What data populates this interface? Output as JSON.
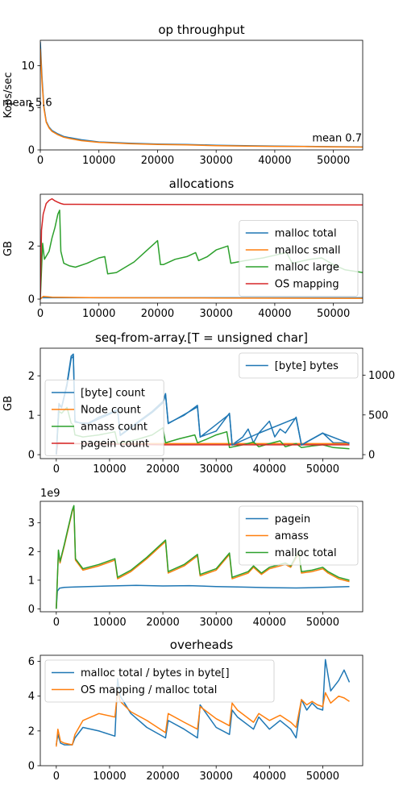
{
  "colors": {
    "C0": "#1f77b4",
    "C1": "#ff7f0e",
    "C2": "#2ca02c",
    "C3": "#d62728"
  },
  "chart_data": [
    {
      "type": "line",
      "title": "op throughput",
      "xlabel": "",
      "ylabel": "Kops/sec",
      "xlim": [
        0,
        55000
      ],
      "ylim": [
        0,
        13
      ],
      "xticks": [
        0,
        10000,
        20000,
        30000,
        40000,
        50000
      ],
      "yticks": [
        0,
        5,
        10
      ],
      "annotations": [
        "mean 5.6",
        "mean 0.7"
      ],
      "series": [
        {
          "color": "C0",
          "x": [
            0,
            300,
            600,
            1000,
            1500,
            2000,
            3000,
            4000,
            5000,
            7000,
            10000,
            15000,
            20000,
            25000,
            30000,
            35000,
            40000,
            45000,
            50000,
            55000
          ],
          "y": [
            12.8,
            8.5,
            5.2,
            3.4,
            2.7,
            2.3,
            1.9,
            1.6,
            1.45,
            1.2,
            0.95,
            0.8,
            0.7,
            0.65,
            0.55,
            0.5,
            0.45,
            0.42,
            0.38,
            0.35
          ]
        },
        {
          "color": "C1",
          "x": [
            0,
            300,
            600,
            1000,
            1500,
            2000,
            3000,
            4000,
            5000,
            7000,
            10000,
            15000,
            20000,
            25000,
            30000,
            35000,
            40000,
            45000,
            50000,
            55000
          ],
          "y": [
            12.0,
            8.0,
            5.0,
            3.3,
            2.6,
            2.2,
            1.8,
            1.5,
            1.35,
            1.1,
            0.9,
            0.75,
            0.65,
            0.6,
            0.5,
            0.45,
            0.42,
            0.4,
            0.36,
            0.33
          ]
        }
      ]
    },
    {
      "type": "line",
      "title": "allocations",
      "xlabel": "",
      "ylabel": "GB",
      "xlim": [
        0,
        55000
      ],
      "ylim": [
        -0.15,
        3.95
      ],
      "xticks": [
        0,
        10000,
        20000,
        30000,
        40000,
        50000
      ],
      "yticks": [
        0,
        2
      ],
      "legend": "center-right",
      "series": [
        {
          "name": "malloc total",
          "color": "C0",
          "x": [
            0,
            55000
          ],
          "y": [
            0.05,
            0.05
          ]
        },
        {
          "name": "malloc small",
          "color": "C1",
          "x": [
            0,
            500,
            2000,
            10000,
            30000,
            55000
          ],
          "y": [
            0.0,
            0.1,
            0.07,
            0.05,
            0.04,
            0.03
          ]
        },
        {
          "name": "malloc large",
          "color": "C2",
          "x": [
            0,
            400,
            700,
            1500,
            2000,
            2500,
            3000,
            3300,
            3500,
            4000,
            5000,
            6000,
            8000,
            10000,
            11000,
            11500,
            13000,
            16000,
            18000,
            20000,
            20500,
            21000,
            23000,
            25000,
            26500,
            27000,
            28500,
            30000,
            32000,
            32500,
            35000,
            38000,
            40000,
            42000,
            43000,
            45000,
            46000,
            48000,
            50000,
            52000,
            55000
          ],
          "y": [
            0.0,
            2.1,
            1.5,
            1.8,
            2.3,
            2.7,
            3.2,
            3.35,
            1.8,
            1.35,
            1.25,
            1.2,
            1.35,
            1.55,
            1.6,
            0.95,
            1.0,
            1.4,
            1.8,
            2.2,
            1.3,
            1.3,
            1.5,
            1.6,
            1.75,
            1.45,
            1.6,
            1.85,
            2.0,
            1.35,
            1.45,
            1.55,
            1.65,
            1.75,
            1.35,
            1.45,
            1.5,
            1.55,
            1.3,
            1.1,
            1.0
          ]
        },
        {
          "name": "OS mapping",
          "color": "C3",
          "x": [
            0,
            200,
            500,
            1000,
            1500,
            2000,
            2500,
            3000,
            3500,
            4000,
            6000,
            55000
          ],
          "y": [
            0.0,
            2.6,
            3.2,
            3.6,
            3.72,
            3.78,
            3.7,
            3.65,
            3.6,
            3.57,
            3.57,
            3.55
          ]
        }
      ]
    },
    {
      "type": "line",
      "title": "seq-from-array.[T = unsigned char]",
      "xlabel": "",
      "ylabel": "GB",
      "xlim": [
        -3000,
        57500
      ],
      "ylim": [
        -0.1,
        2.7
      ],
      "y2lim": [
        -50,
        1340
      ],
      "xticks": [
        0,
        10000,
        20000,
        30000,
        40000,
        50000
      ],
      "yticks": [
        0,
        1,
        2
      ],
      "y2ticks": [
        0,
        500,
        1000
      ],
      "legend": "center-left",
      "legend2": "top-right",
      "series": [
        {
          "name": "[byte] count",
          "color": "C0",
          "x": [
            0,
            500,
            1000,
            2000,
            2800,
            3200,
            3500,
            4500,
            6000,
            8000,
            10000,
            11500,
            12000,
            15000,
            18000,
            20000,
            20500,
            21000,
            24000,
            26500,
            27000,
            30000,
            32500,
            33000,
            35000,
            36000,
            37000,
            38000,
            39000,
            40000,
            41000,
            42000,
            43000,
            44000,
            45000,
            46000,
            48000,
            50000,
            52000,
            55000
          ],
          "y": [
            0.0,
            1.3,
            1.2,
            1.8,
            2.5,
            2.55,
            0.85,
            0.8,
            0.8,
            0.95,
            1.05,
            1.15,
            0.5,
            0.8,
            1.1,
            1.35,
            1.55,
            0.8,
            1.0,
            1.25,
            0.45,
            0.6,
            1.05,
            0.25,
            0.45,
            0.65,
            0.3,
            0.55,
            0.7,
            0.85,
            0.45,
            0.65,
            0.55,
            0.75,
            0.95,
            0.25,
            0.4,
            0.55,
            0.3,
            0.3
          ]
        },
        {
          "name": "Node count",
          "color": "C1",
          "x": [
            0,
            55000
          ],
          "y": [
            0.28,
            0.28
          ]
        },
        {
          "name": "amass count",
          "color": "C2",
          "x": [
            0,
            500,
            1000,
            2000,
            2800,
            3200,
            3500,
            5000,
            8000,
            11000,
            11500,
            15000,
            18000,
            20000,
            20500,
            23000,
            26000,
            26500,
            28000,
            30000,
            32000,
            32500,
            35000,
            37000,
            38000,
            40000,
            42000,
            43000,
            45000,
            46000,
            48000,
            50000,
            52000,
            55000
          ],
          "y": [
            0.0,
            1.1,
            1.05,
            1.2,
            0.8,
            0.75,
            0.5,
            0.45,
            0.5,
            0.58,
            0.28,
            0.38,
            0.5,
            0.68,
            0.3,
            0.4,
            0.5,
            0.3,
            0.38,
            0.5,
            0.58,
            0.18,
            0.25,
            0.32,
            0.2,
            0.28,
            0.35,
            0.2,
            0.28,
            0.18,
            0.22,
            0.25,
            0.18,
            0.15
          ]
        },
        {
          "name": "pagein count",
          "color": "C3",
          "x": [
            0,
            300,
            3000,
            20000,
            55000
          ],
          "y": [
            0.0,
            0.3,
            0.28,
            0.25,
            0.25
          ]
        },
        {
          "name": "[byte] bytes",
          "color": "C0",
          "axis": "y2",
          "x": [
            0,
            500,
            1000,
            2000,
            2800,
            3200,
            3500,
            6000,
            10000,
            11500,
            12000,
            18000,
            20000,
            20500,
            21000,
            26500,
            27000,
            32500,
            33000,
            38000,
            45000,
            46000,
            50000,
            55000
          ],
          "y": [
            0,
            630,
            590,
            870,
            1210,
            1240,
            410,
            390,
            510,
            560,
            240,
            530,
            650,
            750,
            390,
            600,
            220,
            510,
            120,
            270,
            460,
            120,
            270,
            140
          ]
        }
      ]
    },
    {
      "type": "line",
      "title": "",
      "xlabel": "",
      "ylabel": "",
      "offset_label": "1e9",
      "xlim": [
        -3000,
        57500
      ],
      "ylim": [
        -0.1,
        3.75
      ],
      "xticks": [
        0,
        10000,
        20000,
        30000,
        40000,
        50000
      ],
      "yticks": [
        0,
        1,
        2,
        3
      ],
      "legend": "top-right",
      "series": [
        {
          "name": "pagein",
          "color": "C0",
          "x": [
            0,
            200,
            600,
            1500,
            3000,
            6000,
            10000,
            15000,
            20000,
            25000,
            30000,
            35000,
            40000,
            45000,
            50000,
            55000
          ],
          "y": [
            0.0,
            0.62,
            0.72,
            0.75,
            0.76,
            0.78,
            0.8,
            0.82,
            0.8,
            0.81,
            0.78,
            0.76,
            0.74,
            0.73,
            0.75,
            0.78
          ]
        },
        {
          "name": "amass",
          "color": "C1",
          "x": [
            0,
            400,
            700,
            1500,
            2000,
            2500,
            3000,
            3300,
            3600,
            5000,
            8000,
            11000,
            11500,
            14000,
            17000,
            20500,
            21000,
            24000,
            26500,
            27000,
            30000,
            32500,
            33000,
            36000,
            37000,
            38500,
            40000,
            43000,
            44000,
            45500,
            46000,
            48000,
            50000,
            51000,
            53000,
            55000
          ],
          "y": [
            0.0,
            2.0,
            1.6,
            2.2,
            2.6,
            3.0,
            3.4,
            3.55,
            1.7,
            1.35,
            1.5,
            1.7,
            1.05,
            1.3,
            1.75,
            2.35,
            1.25,
            1.5,
            1.85,
            1.15,
            1.35,
            1.9,
            1.05,
            1.25,
            1.45,
            1.2,
            1.4,
            1.55,
            1.45,
            1.95,
            1.25,
            1.3,
            1.4,
            1.25,
            1.05,
            0.95
          ]
        },
        {
          "name": "malloc total",
          "color": "C2",
          "x": [
            0,
            400,
            700,
            1500,
            2000,
            2500,
            3000,
            3300,
            3600,
            5000,
            8000,
            11000,
            11500,
            14000,
            17000,
            20500,
            21000,
            24000,
            26500,
            27000,
            30000,
            32500,
            33000,
            36000,
            37000,
            38500,
            40000,
            43000,
            44000,
            45500,
            46000,
            48000,
            50000,
            51000,
            53000,
            55000
          ],
          "y": [
            0.0,
            2.05,
            1.65,
            2.25,
            2.65,
            3.05,
            3.45,
            3.6,
            1.75,
            1.4,
            1.55,
            1.75,
            1.1,
            1.35,
            1.8,
            2.4,
            1.3,
            1.55,
            1.9,
            1.2,
            1.4,
            1.95,
            1.1,
            1.3,
            1.5,
            1.25,
            1.45,
            1.6,
            1.5,
            2.0,
            1.3,
            1.35,
            1.45,
            1.3,
            1.1,
            1.0
          ]
        }
      ]
    },
    {
      "type": "line",
      "title": "overheads",
      "xlabel": "",
      "ylabel": "",
      "xlim": [
        -3000,
        57500
      ],
      "ylim": [
        0,
        6.35
      ],
      "xticks": [
        0,
        10000,
        20000,
        30000,
        40000,
        50000
      ],
      "yticks": [
        0,
        2,
        4,
        6
      ],
      "legend": "top-left",
      "series": [
        {
          "name": "malloc total / bytes in byte[]",
          "color": "C0",
          "x": [
            0,
            300,
            800,
            1500,
            3000,
            3500,
            5000,
            8000,
            11000,
            11500,
            12000,
            14000,
            17000,
            20500,
            21000,
            24000,
            26500,
            27000,
            30000,
            32500,
            33000,
            34000,
            37000,
            38000,
            40000,
            42000,
            44000,
            45000,
            46000,
            47000,
            48000,
            49000,
            50000,
            50500,
            51500,
            53000,
            54000,
            55000
          ],
          "y": [
            1.2,
            1.8,
            1.3,
            1.2,
            1.2,
            1.6,
            2.2,
            2.0,
            1.7,
            5.0,
            4.0,
            3.0,
            2.2,
            1.6,
            2.6,
            2.1,
            1.6,
            3.5,
            2.2,
            1.8,
            3.2,
            2.8,
            2.1,
            2.8,
            2.1,
            2.6,
            2.1,
            1.6,
            3.8,
            3.2,
            3.6,
            3.3,
            3.2,
            6.1,
            4.3,
            4.9,
            5.5,
            4.8
          ]
        },
        {
          "name": "OS mapping / malloc total",
          "color": "C1",
          "x": [
            0,
            300,
            800,
            1500,
            3000,
            3500,
            5000,
            8000,
            11000,
            11500,
            12000,
            14000,
            17000,
            20500,
            21000,
            24000,
            26500,
            27000,
            30000,
            32500,
            33000,
            34000,
            37000,
            38000,
            40000,
            42000,
            44000,
            45000,
            46000,
            47000,
            48000,
            49000,
            50000,
            50500,
            51500,
            53000,
            54000,
            55000
          ],
          "y": [
            1.1,
            2.1,
            1.4,
            1.3,
            1.2,
            1.8,
            2.6,
            3.0,
            2.8,
            4.3,
            3.7,
            3.1,
            2.6,
            1.9,
            3.0,
            2.5,
            2.1,
            3.4,
            2.7,
            2.3,
            3.6,
            3.2,
            2.5,
            3.0,
            2.6,
            2.9,
            2.5,
            2.2,
            3.8,
            3.5,
            3.7,
            3.5,
            3.4,
            4.2,
            3.6,
            4.0,
            3.9,
            3.7
          ]
        }
      ]
    }
  ]
}
